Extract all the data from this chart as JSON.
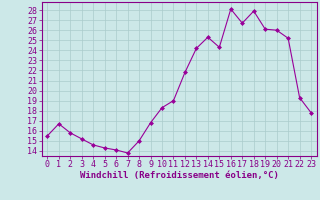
{
  "x": [
    0,
    1,
    2,
    3,
    4,
    5,
    6,
    7,
    8,
    9,
    10,
    11,
    12,
    13,
    14,
    15,
    16,
    17,
    18,
    19,
    20,
    21,
    22,
    23
  ],
  "y": [
    15.5,
    16.7,
    15.8,
    15.2,
    14.6,
    14.3,
    14.1,
    13.8,
    15.0,
    16.8,
    18.3,
    19.0,
    21.8,
    24.2,
    25.3,
    24.3,
    28.1,
    26.7,
    27.9,
    26.1,
    26.0,
    25.2,
    19.3,
    17.8
  ],
  "line_color": "#990099",
  "marker": "D",
  "markersize": 2,
  "linewidth": 0.8,
  "bg_color": "#cce8e8",
  "grid_color": "#aacccc",
  "xlabel": "Windchill (Refroidissement éolien,°C)",
  "xlabel_fontsize": 6.5,
  "ylabel_ticks": [
    14,
    15,
    16,
    17,
    18,
    19,
    20,
    21,
    22,
    23,
    24,
    25,
    26,
    27,
    28
  ],
  "ylim": [
    13.5,
    28.8
  ],
  "xlim": [
    -0.5,
    23.5
  ],
  "tick_fontsize": 6,
  "tick_color": "#880088",
  "axes_color": "#880088"
}
